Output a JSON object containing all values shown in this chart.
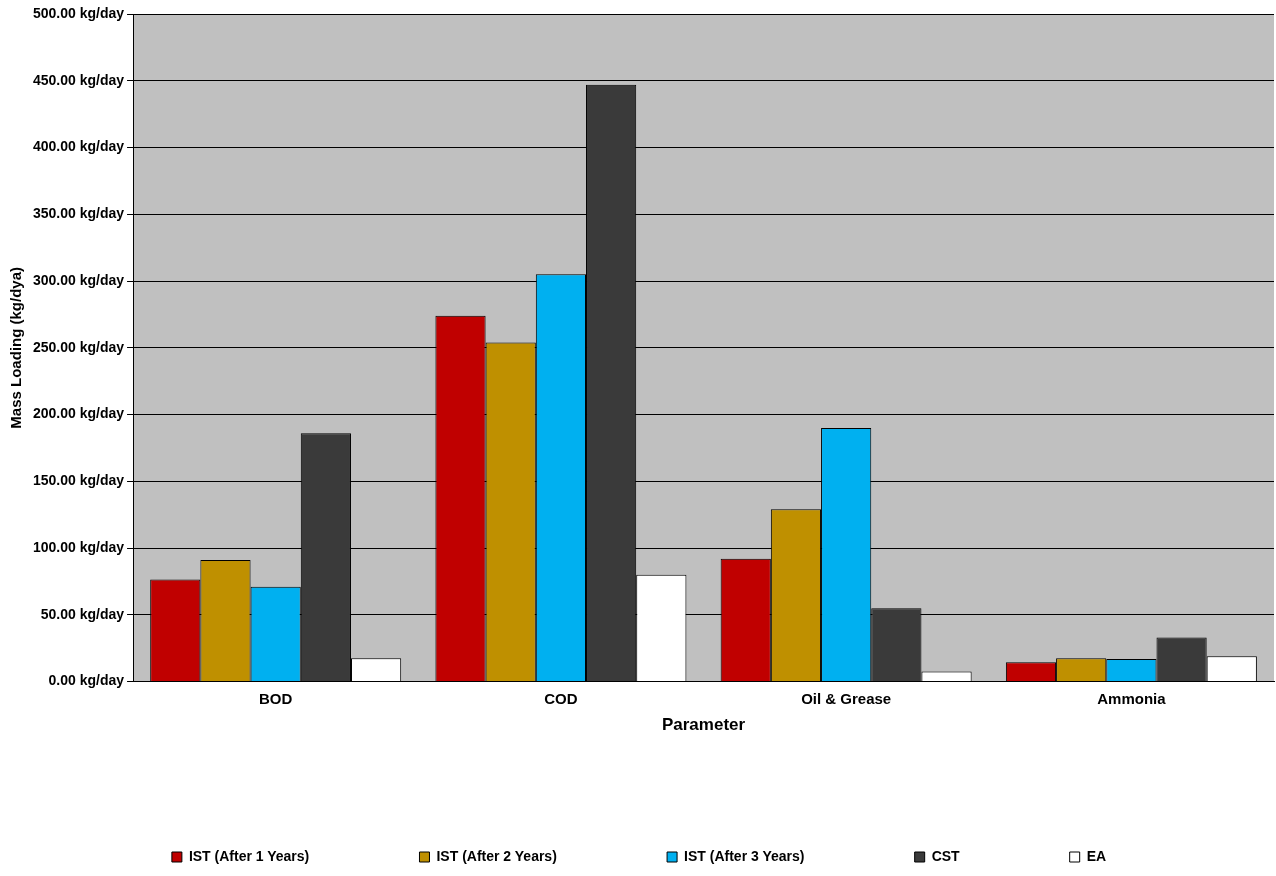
{
  "chart_data": {
    "type": "bar",
    "xlabel": "Parameter",
    "ylabel": "Mass Loading (kg/dya)",
    "categories": [
      "BOD",
      "COD",
      "Oil & Grease",
      "Ammonia"
    ],
    "series": [
      {
        "name": "IST (After 1 Years)",
        "color": "#c00000",
        "values": [
          76.5,
          274,
          92,
          14.5
        ]
      },
      {
        "name": "IST (After 2 Years)",
        "color": "#bf9000",
        "values": [
          91,
          254,
          129,
          17.5
        ]
      },
      {
        "name": "IST (After 3 Years)",
        "color": "#00b0f0",
        "values": [
          71,
          305,
          190,
          17
        ]
      },
      {
        "name": "CST",
        "color": "#3a3a3a",
        "values": [
          186,
          447,
          55,
          33
        ]
      },
      {
        "name": "EA",
        "color": "#ffffff",
        "values": [
          17.5,
          80,
          7.5,
          19
        ]
      }
    ],
    "ylim": [
      0,
      500
    ],
    "yticks": [
      {
        "value": 0,
        "label": "0.00 kg/day"
      },
      {
        "value": 50,
        "label": "50.00 kg/day"
      },
      {
        "value": 100,
        "label": "100.00 kg/day"
      },
      {
        "value": 150,
        "label": "150.00 kg/day"
      },
      {
        "value": 200,
        "label": "200.00 kg/day"
      },
      {
        "value": 250,
        "label": "250.00 kg/day"
      },
      {
        "value": 300,
        "label": "300.00 kg/day"
      },
      {
        "value": 350,
        "label": "350.00 kg/day"
      },
      {
        "value": 400,
        "label": "400.00 kg/day"
      },
      {
        "value": 450,
        "label": "450.00 kg/day"
      },
      {
        "value": 500,
        "label": "500.00 kg/day"
      }
    ],
    "grid": "y",
    "legend": "bottom"
  }
}
